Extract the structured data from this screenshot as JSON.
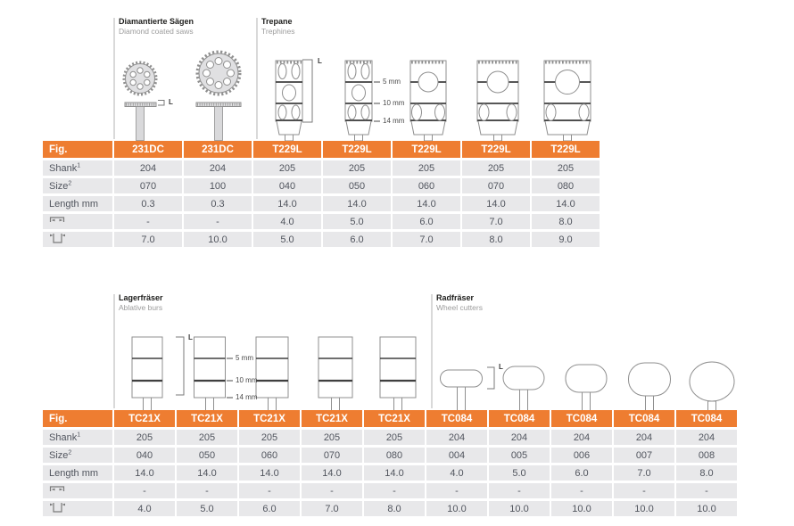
{
  "accent": "#ee7d31",
  "labels": {
    "length": "L",
    "depth_marks": [
      "5 mm",
      "10 mm",
      "14 mm"
    ]
  },
  "top_section": {
    "groups": [
      {
        "title": "Diamantierte Sägen",
        "subtitle": "Diamond coated saws"
      },
      {
        "title": "Trepane",
        "subtitle": "Trephines"
      }
    ],
    "table": {
      "row_labels": [
        {
          "label": "Fig.",
          "sup": ""
        },
        {
          "label": "Shank",
          "sup": "1"
        },
        {
          "label": "Size",
          "sup": "2"
        },
        {
          "label": "Length mm",
          "sup": ""
        },
        {
          "icon": "inner-diameter-icon"
        },
        {
          "icon": "outer-diameter-icon"
        }
      ],
      "columns": [
        {
          "fig": "231DC",
          "cells": [
            "204",
            "070",
            "0.3",
            "-",
            "7.0"
          ]
        },
        {
          "fig": "231DC",
          "cells": [
            "204",
            "100",
            "0.3",
            "-",
            "10.0"
          ]
        },
        {
          "fig": "T229L",
          "cells": [
            "205",
            "040",
            "14.0",
            "4.0",
            "5.0"
          ]
        },
        {
          "fig": "T229L",
          "cells": [
            "205",
            "050",
            "14.0",
            "5.0",
            "6.0"
          ]
        },
        {
          "fig": "T229L",
          "cells": [
            "205",
            "060",
            "14.0",
            "6.0",
            "7.0"
          ]
        },
        {
          "fig": "T229L",
          "cells": [
            "205",
            "070",
            "14.0",
            "7.0",
            "8.0"
          ]
        },
        {
          "fig": "T229L",
          "cells": [
            "205",
            "080",
            "14.0",
            "8.0",
            "9.0"
          ]
        }
      ]
    }
  },
  "bottom_section": {
    "groups": [
      {
        "title": "Lagerfräser",
        "subtitle": "Ablative burs"
      },
      {
        "title": "Radfräser",
        "subtitle": "Wheel cutters"
      }
    ],
    "table": {
      "row_labels": [
        {
          "label": "Fig.",
          "sup": ""
        },
        {
          "label": "Shank",
          "sup": "1"
        },
        {
          "label": "Size",
          "sup": "2"
        },
        {
          "label": "Length mm",
          "sup": ""
        },
        {
          "icon": "inner-diameter-icon"
        },
        {
          "icon": "outer-diameter-icon"
        }
      ],
      "columns": [
        {
          "fig": "TC21X",
          "cells": [
            "205",
            "040",
            "14.0",
            "-",
            "4.0"
          ]
        },
        {
          "fig": "TC21X",
          "cells": [
            "205",
            "050",
            "14.0",
            "-",
            "5.0"
          ]
        },
        {
          "fig": "TC21X",
          "cells": [
            "205",
            "060",
            "14.0",
            "-",
            "6.0"
          ]
        },
        {
          "fig": "TC21X",
          "cells": [
            "205",
            "070",
            "14.0",
            "-",
            "7.0"
          ]
        },
        {
          "fig": "TC21X",
          "cells": [
            "205",
            "080",
            "14.0",
            "-",
            "8.0"
          ]
        },
        {
          "fig": "TC084",
          "cells": [
            "204",
            "004",
            "4.0",
            "-",
            "10.0"
          ]
        },
        {
          "fig": "TC084",
          "cells": [
            "204",
            "005",
            "5.0",
            "-",
            "10.0"
          ]
        },
        {
          "fig": "TC084",
          "cells": [
            "204",
            "006",
            "6.0",
            "-",
            "10.0"
          ]
        },
        {
          "fig": "TC084",
          "cells": [
            "204",
            "007",
            "7.0",
            "-",
            "10.0"
          ]
        },
        {
          "fig": "TC084",
          "cells": [
            "204",
            "008",
            "8.0",
            "-",
            "10.0"
          ]
        }
      ]
    }
  }
}
